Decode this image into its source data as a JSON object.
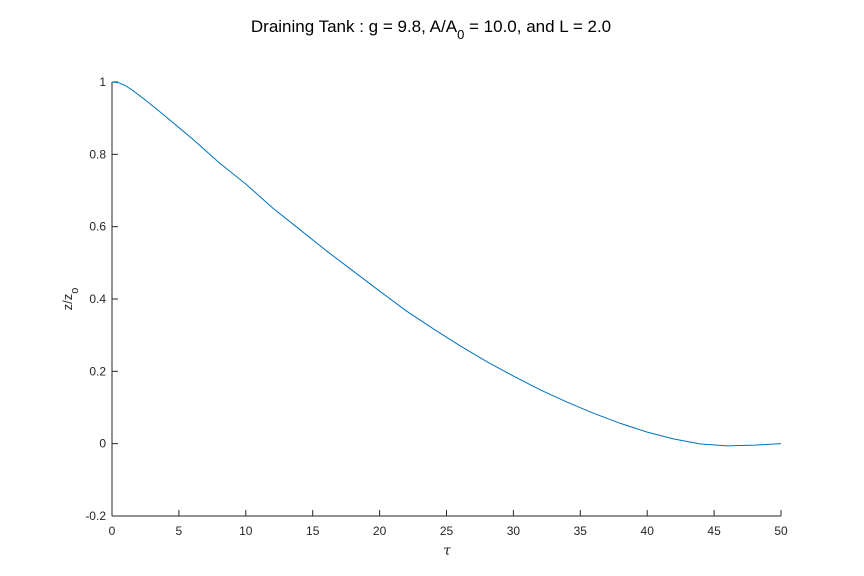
{
  "chart_data": {
    "type": "line",
    "title": {
      "prefix": "Draining Tank : g = 9.8, A/A",
      "subscript": "0",
      "suffix": " = 10.0, and L = 2.0"
    },
    "xlabel": "τ",
    "ylabel": {
      "main": "z/z",
      "subscript": "o"
    },
    "xlim": [
      0,
      50
    ],
    "ylim": [
      -0.2,
      1
    ],
    "xticks": [
      0,
      5,
      10,
      15,
      20,
      25,
      30,
      35,
      40,
      45,
      50
    ],
    "xtick_labels": [
      "0",
      "5",
      "10",
      "15",
      "20",
      "25",
      "30",
      "35",
      "40",
      "45",
      "50"
    ],
    "yticks": [
      -0.2,
      0,
      0.2,
      0.4,
      0.6,
      0.8,
      1
    ],
    "ytick_labels": [
      "-0.2",
      "0",
      "0.2",
      "0.4",
      "0.6",
      "0.8",
      "1"
    ],
    "grid": false,
    "series": [
      {
        "color": "#0072bd",
        "x": [
          0,
          0.5,
          1,
          1.5,
          2,
          2.5,
          3,
          4,
          5,
          6,
          8,
          10,
          12,
          14,
          16,
          18,
          20,
          22,
          24,
          26,
          28,
          30,
          32,
          34,
          36,
          38,
          40,
          42,
          44,
          46,
          48,
          50
        ],
        "y": [
          1.0,
          0.998,
          0.99,
          0.978,
          0.964,
          0.95,
          0.935,
          0.905,
          0.874,
          0.843,
          0.777,
          0.718,
          0.652,
          0.593,
          0.534,
          0.478,
          0.422,
          0.367,
          0.318,
          0.271,
          0.227,
          0.187,
          0.149,
          0.115,
          0.084,
          0.056,
          0.032,
          0.013,
          -0.001,
          -0.006,
          -0.004,
          0.0
        ]
      }
    ]
  }
}
